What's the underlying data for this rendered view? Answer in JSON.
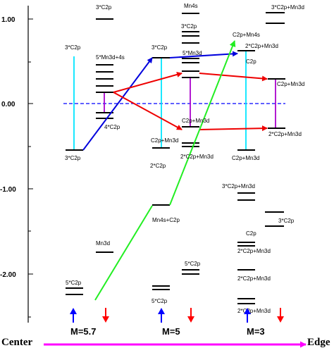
{
  "axis": {
    "ticks": [
      "1.00",
      "0.00",
      "-1.00",
      "-2.00"
    ],
    "tick_values": [
      1.0,
      0.0,
      -1.0,
      -2.0
    ],
    "fermi_level": 0.0
  },
  "bottom": {
    "left": "Center",
    "right": "Edge",
    "arrow_color": "#ff00ff"
  },
  "columns": [
    {
      "label": "M=5.7",
      "up_color": "#0000ff",
      "down_color": "#ff0000"
    },
    {
      "label": "M=5",
      "up_color": "#0000ff",
      "down_color": "#ff0000"
    },
    {
      "label": "M=3",
      "up_color": "#0000ff",
      "down_color": "#ff0000"
    }
  ],
  "orbital_labels": [
    "3*C2p",
    "3*C2p",
    "5*Mn3d+4s",
    "4*C2p",
    "Mn3d",
    "5*C2p",
    "Mn4s",
    "3*C2p",
    "3*C2p",
    "5*Mn3d",
    "C2p+Mn3d",
    "C2p+Mn3d",
    "2*C2p+Mn3d",
    "2*C2p",
    "Mn4s+C2p",
    "5*C2p",
    "5*C2p",
    "3*C2p+Mn3d",
    "C2p+Mn4s",
    "2*C2p+Mn3d",
    "C2p",
    "C2p+Mn3d",
    "C2p+Mn3d",
    "2*C2p+Mn3d",
    "3*C2p+Mn3d",
    "3*C2p",
    "C2p",
    "2*C2p+Mn3d",
    "2*C2p+Mn3d",
    "2*C2p+Mn3d"
  ],
  "colors": {
    "cyan": "#00e5ff",
    "purple": "#aa00cc",
    "blue": "#0000dd",
    "red": "#ee0000",
    "green": "#22ee22",
    "fermi": "#0000ff"
  }
}
